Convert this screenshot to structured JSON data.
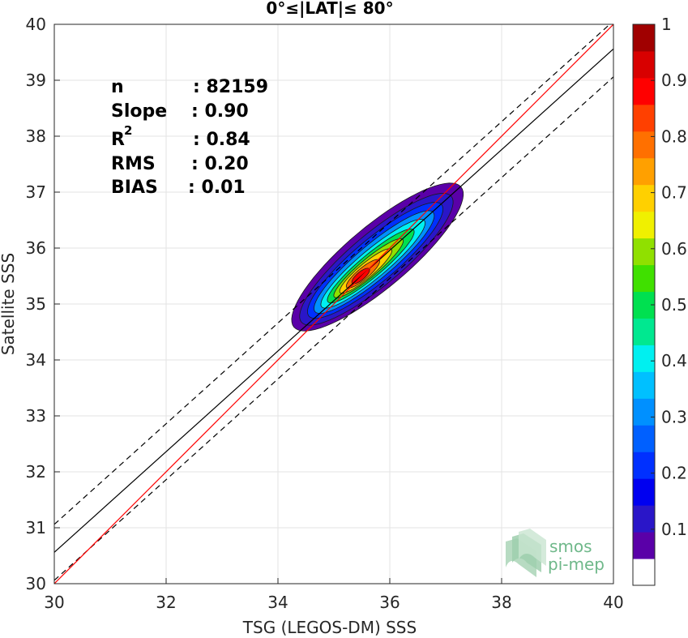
{
  "chart_data": {
    "type": "contour",
    "title": "0°≤|LAT|≤ 80°",
    "xlabel": "TSG (LEGOS-DM) SSS",
    "ylabel": "Satellite SSS",
    "xlim": [
      30,
      40
    ],
    "ylim": [
      30,
      40
    ],
    "xticks": [
      "30",
      "32",
      "34",
      "36",
      "38",
      "40"
    ],
    "yticks": [
      "30",
      "31",
      "32",
      "33",
      "34",
      "35",
      "36",
      "37",
      "38",
      "39",
      "40"
    ],
    "grid": true,
    "stats": [
      {
        "label": "n",
        "value": ": 82159"
      },
      {
        "label": "Slope",
        "value": ": 0.90"
      },
      {
        "label": "R",
        "sup": "2",
        "value": ": 0.84"
      },
      {
        "label": "RMS",
        "value": ": 0.20"
      },
      {
        "label": "BIAS",
        "value": ": 0.01"
      }
    ],
    "lines": {
      "identity": {
        "color": "#ff0000",
        "slope": 1,
        "intercept": 0
      },
      "fit": {
        "color": "#000000",
        "slope": 0.9,
        "intercept": 3.56
      },
      "fit_upper": {
        "color": "#000000",
        "dash": true,
        "slope": 0.9,
        "intercept": 4.06
      },
      "fit_lower": {
        "color": "#000000",
        "dash": true,
        "slope": 0.9,
        "intercept": 3.06
      }
    },
    "density": {
      "center": [
        35.5,
        35.52
      ],
      "orientation_deg": 40,
      "levels": [
        0.05,
        0.1,
        0.2,
        0.3,
        0.4,
        0.5,
        0.6,
        0.7,
        0.8,
        0.9
      ],
      "level_sizes": [
        {
          "level": 0.05,
          "a": 1.95,
          "b": 0.55,
          "center": [
            35.78,
            35.84
          ]
        },
        {
          "level": 0.1,
          "a": 1.75,
          "b": 0.46,
          "center": [
            35.76,
            35.8
          ]
        },
        {
          "level": 0.2,
          "a": 1.55,
          "b": 0.38,
          "center": [
            35.74,
            35.78
          ]
        },
        {
          "level": 0.3,
          "a": 1.38,
          "b": 0.31,
          "center": [
            35.72,
            35.75
          ]
        },
        {
          "level": 0.4,
          "a": 1.2,
          "b": 0.25,
          "center": [
            35.7,
            35.72
          ]
        },
        {
          "level": 0.5,
          "a": 1.0,
          "b": 0.2,
          "center": [
            35.66,
            35.68
          ]
        },
        {
          "level": 0.6,
          "a": 0.8,
          "b": 0.16,
          "center": [
            35.62,
            35.64
          ]
        },
        {
          "level": 0.7,
          "a": 0.6,
          "b": 0.13,
          "center": [
            35.57,
            35.59
          ]
        },
        {
          "level": 0.8,
          "a": 0.38,
          "b": 0.1,
          "center": [
            35.52,
            35.54
          ]
        },
        {
          "level": 0.9,
          "a": 0.2,
          "b": 0.07,
          "center": [
            35.48,
            35.5
          ]
        }
      ]
    },
    "colorbar": {
      "min": 0,
      "max": 1,
      "ticks": [
        "0.1",
        "0.2",
        "0.3",
        "0.4",
        "0.5",
        "0.6",
        "0.7",
        "0.8",
        "0.9",
        "1"
      ],
      "tick_values": [
        0.1,
        0.2,
        0.3,
        0.4,
        0.5,
        0.6,
        0.7,
        0.8,
        0.9,
        1.0
      ],
      "colors": [
        "#ffffff",
        "#5a00a8",
        "#2a16c8",
        "#0000f0",
        "#0030ff",
        "#0060ff",
        "#0090ff",
        "#00c0ff",
        "#00f0f0",
        "#00e890",
        "#00e050",
        "#40e000",
        "#90e000",
        "#f0f000",
        "#ffd000",
        "#ffa000",
        "#ff7000",
        "#ff4000",
        "#ff0000",
        "#d80000",
        "#a00000"
      ]
    }
  },
  "logo": {
    "line1": "smos",
    "line2": "pi-mep"
  }
}
